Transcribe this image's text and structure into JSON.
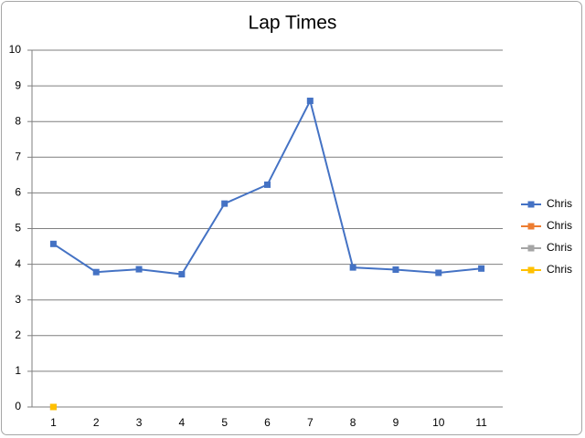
{
  "chart_data": {
    "type": "line",
    "title": "Lap Times",
    "categories": [
      1,
      2,
      3,
      4,
      5,
      6,
      7,
      8,
      9,
      10,
      11
    ],
    "series": [
      {
        "name": "Chris",
        "color": "#4472c4",
        "values": [
          4.57,
          3.78,
          3.86,
          3.72,
          5.7,
          6.23,
          8.58,
          3.91,
          3.85,
          3.76,
          3.88
        ]
      },
      {
        "name": "Chris",
        "color": "#ed7d31",
        "values": [
          0,
          null,
          null,
          null,
          null,
          null,
          null,
          null,
          null,
          null,
          null
        ]
      },
      {
        "name": "Chris",
        "color": "#a5a5a5",
        "values": [
          0,
          null,
          null,
          null,
          null,
          null,
          null,
          null,
          null,
          null,
          null
        ]
      },
      {
        "name": "Chris",
        "color": "#ffc000",
        "values": [
          0,
          null,
          null,
          null,
          null,
          null,
          null,
          null,
          null,
          null,
          null
        ]
      }
    ],
    "ylim": [
      0,
      10
    ],
    "yticks": [
      0,
      1,
      2,
      3,
      4,
      5,
      6,
      7,
      8,
      9,
      10
    ],
    "grid": true,
    "legend": "right"
  }
}
